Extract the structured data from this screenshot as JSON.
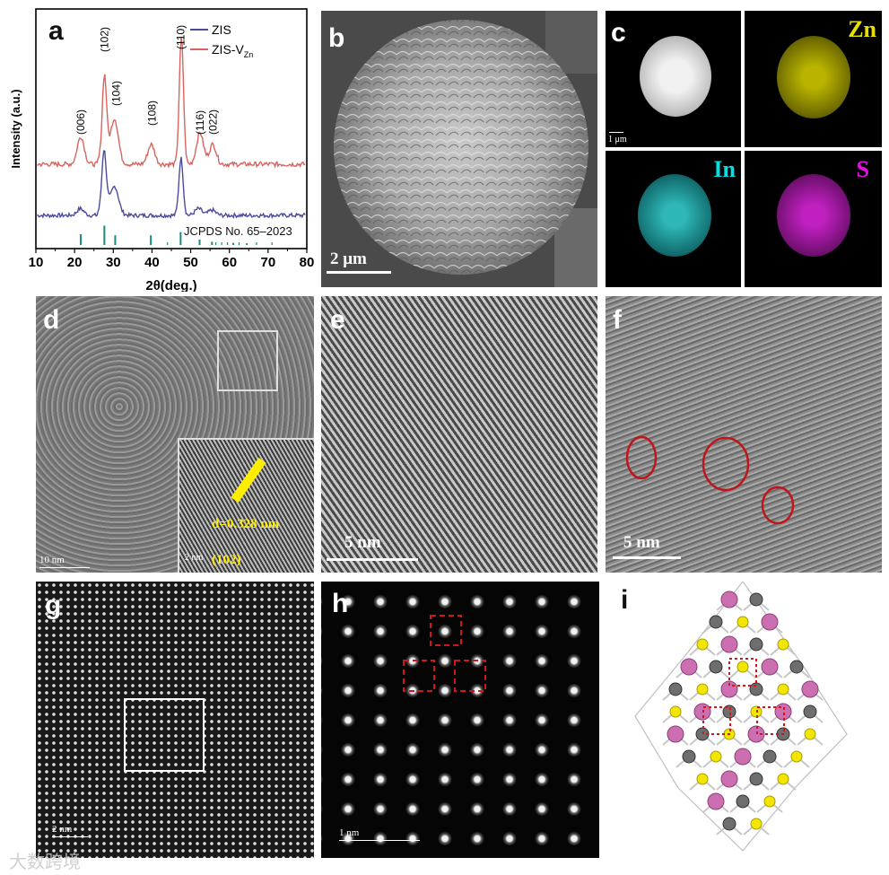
{
  "panels": {
    "a": "a",
    "b": "b",
    "c": "c",
    "d": "d",
    "e": "e",
    "f": "f",
    "g": "g",
    "h": "h",
    "i": "i"
  },
  "panel_a": {
    "legend": {
      "zis": "ZIS",
      "zisv_main": "ZIS-V",
      "zisv_sub": "Zn"
    },
    "peaks": [
      "(006)",
      "(102)",
      "(104)",
      "(108)",
      "(110)",
      "(116)",
      "(022)"
    ],
    "reference": "JCPDS No. 65–2023",
    "colors": {
      "zis": "#4b4b9c",
      "zisv": "#d9635f",
      "ref": "#1a8a80"
    }
  },
  "chart_data": {
    "type": "line",
    "xlabel": "2θ(deg.)",
    "ylabel": "Intensity (a.u.)",
    "xlim": [
      10,
      80
    ],
    "x_ticks": [
      "10",
      "20",
      "30",
      "40",
      "50",
      "60",
      "70",
      "80"
    ],
    "series": [
      {
        "name": "ZIS",
        "peaks": [
          [
            21.5,
            0.1
          ],
          [
            27.6,
            0.85
          ],
          [
            30.5,
            0.3
          ],
          [
            47.5,
            0.85
          ],
          [
            52,
            0.1
          ],
          [
            55.5,
            0.08
          ]
        ]
      },
      {
        "name": "ZIS-V_Zn",
        "peaks": [
          [
            21.6,
            0.35
          ],
          [
            27.7,
            1.0
          ],
          [
            30.4,
            0.45
          ],
          [
            39.8,
            0.25
          ],
          [
            47.6,
            1.6
          ],
          [
            52.4,
            0.4
          ],
          [
            55.7,
            0.25
          ]
        ]
      }
    ],
    "reference_lines": [
      [
        21.6,
        0.5
      ],
      [
        27.7,
        0.9
      ],
      [
        30.5,
        0.45
      ],
      [
        39.7,
        0.45
      ],
      [
        47.4,
        0.6
      ],
      [
        52.3,
        0.25
      ],
      [
        55.5,
        0.15
      ],
      [
        61,
        0.1
      ],
      [
        64.5,
        0.08
      ]
    ]
  },
  "panel_b": {
    "scale": "2 μm"
  },
  "panel_c": {
    "scale": "1 μm",
    "zn": "Zn",
    "in": "In",
    "s": "S",
    "colors": {
      "zn": "#e8e000",
      "in": "#00e0e6",
      "s": "#e60fe6"
    }
  },
  "panel_d": {
    "scale": "10 nm",
    "inset_scale": "2 nm",
    "d_spacing": "d=0.328 nm",
    "plane": "(102)"
  },
  "panel_e": {
    "scale": "5 nm"
  },
  "panel_f": {
    "scale": "5 nm"
  },
  "panel_g": {
    "scale": "2 nm"
  },
  "panel_h": {
    "scale": "1 nm"
  },
  "watermark": "大数跨境"
}
